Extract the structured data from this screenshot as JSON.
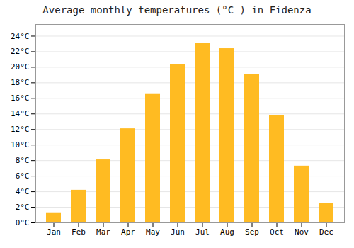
{
  "chart_data": {
    "type": "bar",
    "title": "Average monthly temperatures (°C ) in Fidenza",
    "categories": [
      "Jan",
      "Feb",
      "Mar",
      "Apr",
      "May",
      "Jun",
      "Jul",
      "Aug",
      "Sep",
      "Oct",
      "Nov",
      "Dec"
    ],
    "values": [
      1.3,
      4.2,
      8.1,
      12.1,
      16.6,
      20.4,
      23.1,
      22.4,
      19.1,
      13.8,
      7.3,
      2.5
    ],
    "color": "#FFBB22",
    "ylim": [
      0,
      25.5
    ],
    "yticks": [
      {
        "value": 0,
        "label": "0°C"
      },
      {
        "value": 2,
        "label": "2°C"
      },
      {
        "value": 4,
        "label": "4°C"
      },
      {
        "value": 6,
        "label": "6°C"
      },
      {
        "value": 8,
        "label": "8°C"
      },
      {
        "value": 10,
        "label": "10°C"
      },
      {
        "value": 12,
        "label": "12°C"
      },
      {
        "value": 14,
        "label": "14°C"
      },
      {
        "value": 16,
        "label": "16°C"
      },
      {
        "value": 18,
        "label": "18°C"
      },
      {
        "value": 20,
        "label": "20°C"
      },
      {
        "value": 22,
        "label": "22°C"
      },
      {
        "value": 24,
        "label": "24°C"
      }
    ],
    "grid": true
  }
}
